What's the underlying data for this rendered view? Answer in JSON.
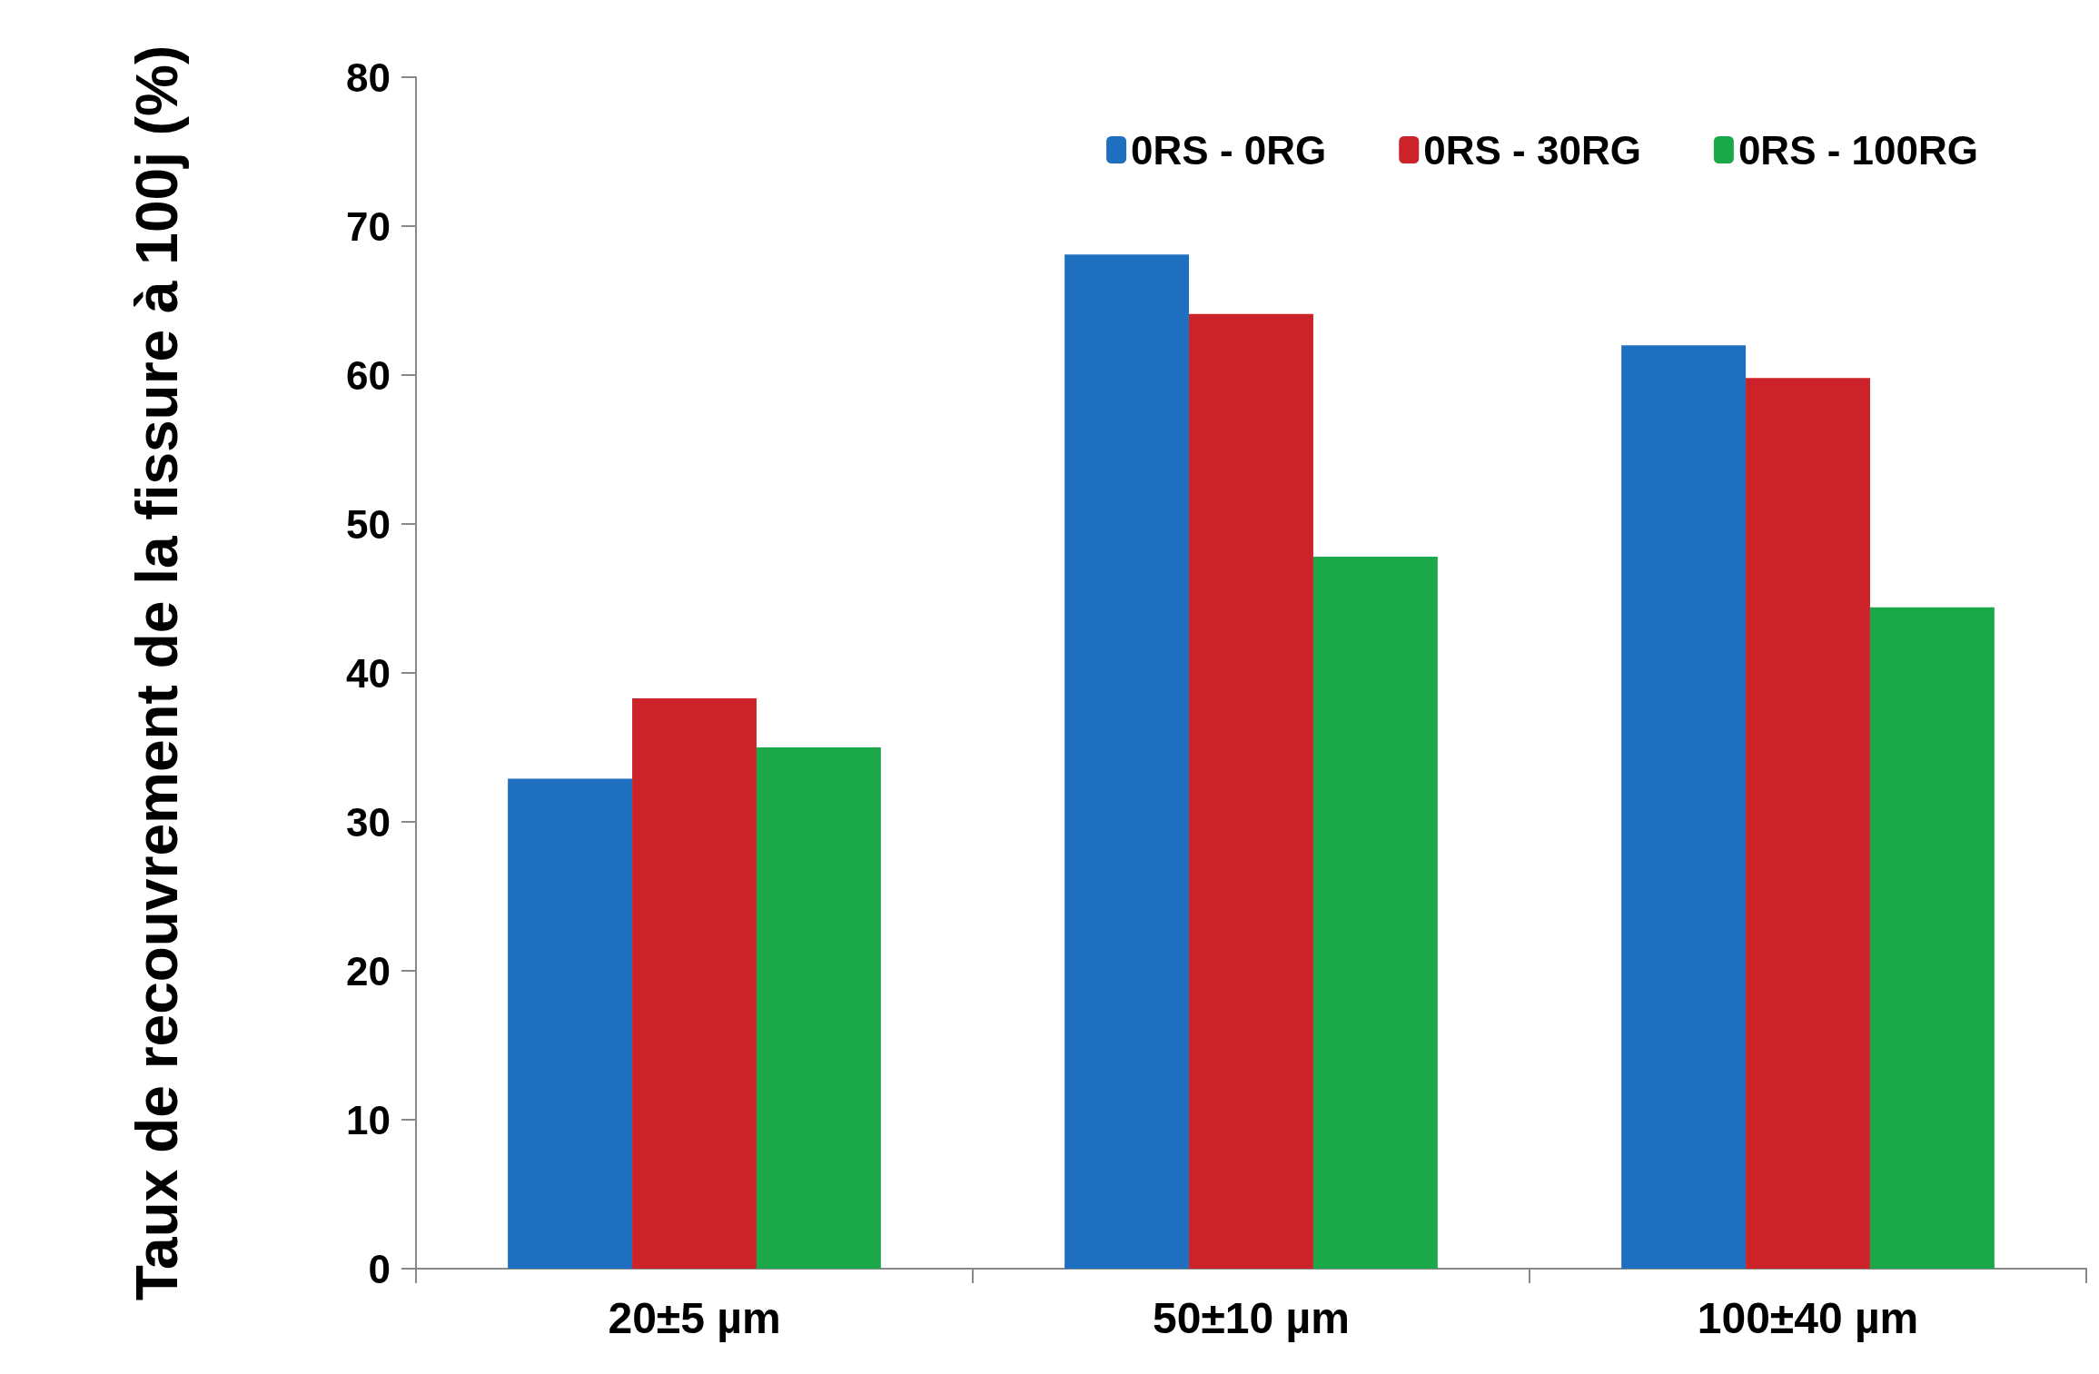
{
  "chart_data": {
    "type": "bar",
    "ylabel": "Taux de recouvrement de la fissure à 100j (%)",
    "categories": [
      "20±5 µm",
      "50±10 µm",
      "100±40 µm"
    ],
    "series": [
      {
        "name": "0RS - 0RG",
        "color": "#1f6fc0",
        "values": [
          32.9,
          68.1,
          62.0
        ]
      },
      {
        "name": "0RS - 30RG",
        "color": "#cc2229",
        "values": [
          38.3,
          64.1,
          59.8
        ]
      },
      {
        "name": "0RS - 100RG",
        "color": "#1aa84a",
        "values": [
          35.0,
          47.8,
          44.4
        ]
      }
    ],
    "ylim": [
      0,
      80
    ],
    "yticks": [
      0,
      10,
      20,
      30,
      40,
      50,
      60,
      70,
      80
    ],
    "grid": false,
    "legend": "top right"
  }
}
